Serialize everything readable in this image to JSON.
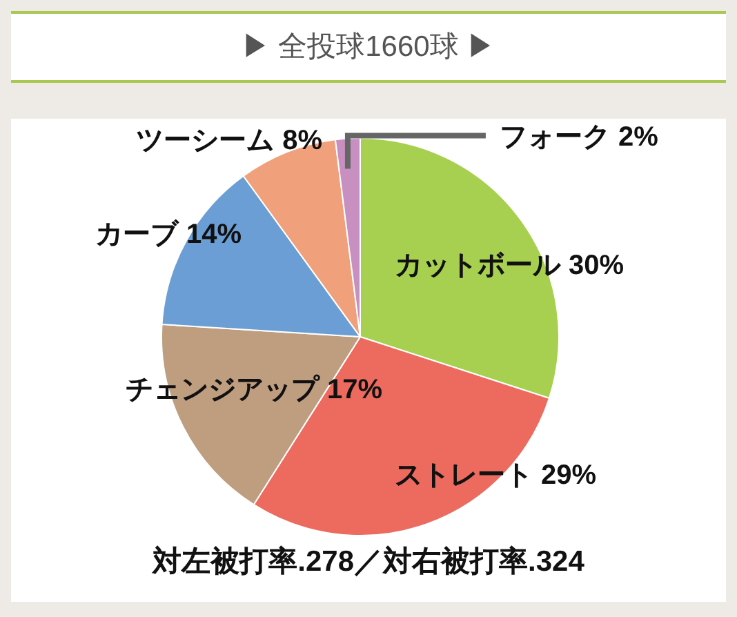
{
  "chart_data": {
    "type": "pie",
    "title": "▶ 全投球1660球 ▶",
    "categories": [
      "カットボール",
      "ストレート",
      "チェンジアップ",
      "カーブ",
      "ツーシーム",
      "フォーク"
    ],
    "values": [
      30,
      29,
      17,
      14,
      8,
      2
    ],
    "colors": [
      "#a8d050",
      "#ec6a5e",
      "#bf9e80",
      "#6b9ed4",
      "#f0a07a",
      "#c890c0"
    ],
    "value_labels": [
      "30%",
      "29%",
      "17%",
      "14%",
      "8%",
      "2%"
    ],
    "annotations": [
      "対左被打率.278／対右被打率.324"
    ]
  }
}
